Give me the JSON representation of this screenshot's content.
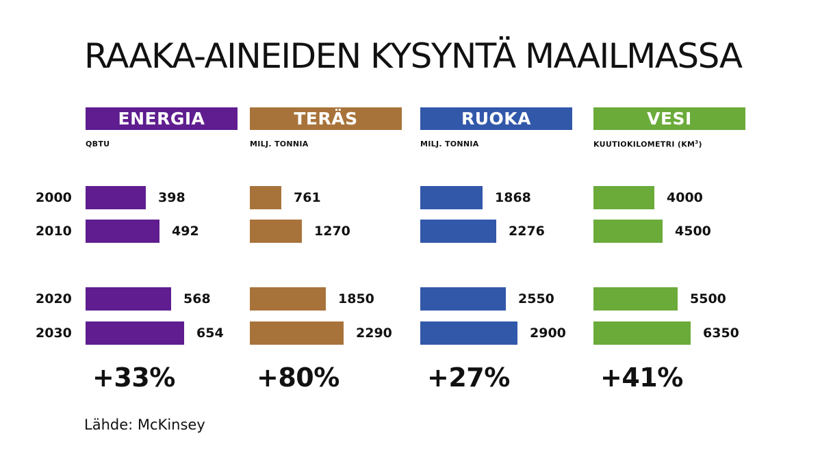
{
  "title": "RAAKA-AINEIDEN KYSYNTÄ MAAILMASSA",
  "source": "Lähde: McKinsey",
  "chart_data": {
    "type": "bar",
    "categories": [
      "2000",
      "2010",
      "2020",
      "2030"
    ],
    "panels": [
      {
        "name": "ENERGIA",
        "unit": "QBTU",
        "color": "#5f1d8f",
        "values": [
          398,
          492,
          568,
          654
        ],
        "labels": [
          "398",
          "492",
          "568",
          "654"
        ],
        "change": "+33%"
      },
      {
        "name": "TERÄS",
        "unit": "MILJ. TONNIA",
        "color": "#a8733a",
        "values": [
          761,
          1270,
          1850,
          2290
        ],
        "labels": [
          "761",
          "1270",
          "1850",
          "2290"
        ],
        "change": "+80%"
      },
      {
        "name": "RUOKA",
        "unit": "MILJ. TONNIA",
        "color": "#3258aa",
        "values": [
          1868,
          2276,
          2550,
          2900
        ],
        "labels": [
          "1868",
          "2276",
          "2550",
          "2900"
        ],
        "change": "+27%"
      },
      {
        "name": "VESI",
        "unit": "KUUTIOKILOMETRI (KM",
        "unit_sup": "3",
        "unit_suffix": ")",
        "color": "#6aab3a",
        "values": [
          4000,
          4500,
          5500,
          6350
        ],
        "labels": [
          "4000",
          "4500",
          "5500",
          "6350"
        ],
        "change": "+41%"
      }
    ]
  }
}
